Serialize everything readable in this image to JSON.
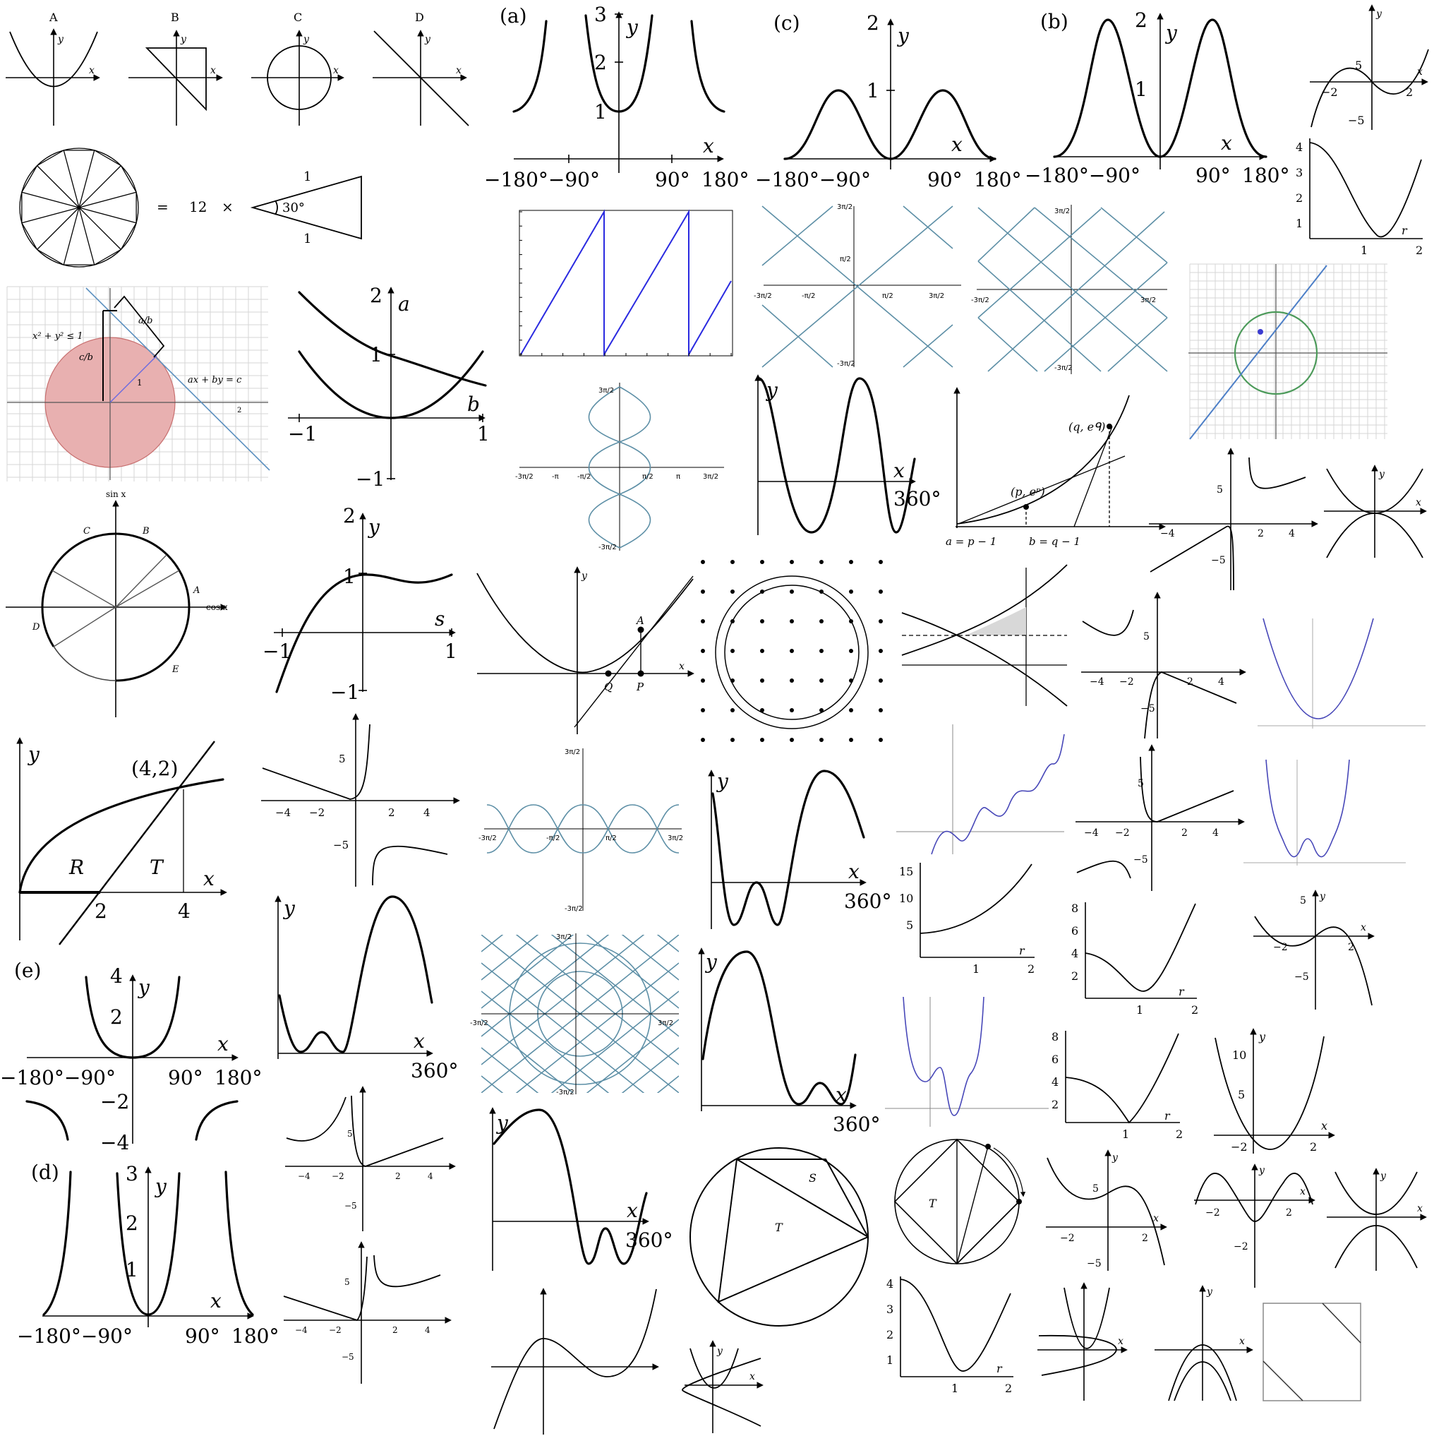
{
  "labels": {
    "A": "A",
    "B": "B",
    "C": "C",
    "D": "D",
    "a_paren": "(a)",
    "b_paren": "(b)",
    "c_paren": "(c)",
    "d_paren": "(d)",
    "e_paren": "(e)",
    "x": "x",
    "y": "y",
    "a": "a",
    "b": "b",
    "s": "s",
    "r": "r",
    "sinx": "sin x",
    "cosx": "cos x",
    "deg_m180_m90": "−180°−90°",
    "deg_90": "90°",
    "deg_180": "180°",
    "deg_360": "360°",
    "n1": "1",
    "n2": "2",
    "n3": "3",
    "n4": "4",
    "n5": "5",
    "n6": "6",
    "n8": "8",
    "n10": "10",
    "n15": "15",
    "n12": "12",
    "m1": "−1",
    "m2": "−2",
    "m4": "−4",
    "m5": "−5",
    "eq": "=",
    "times": "×",
    "deg30": "30°",
    "ineq": "x² + y² ≤ 1",
    "ab": "a/b",
    "cb": "c/b",
    "line_eq": "ax + by = c",
    "pt42": "(4,2)",
    "R": "R",
    "T": "T",
    "S": "S",
    "Pp": "P",
    "Qq": "Q",
    "Aa": "A",
    "pep": "(p, eᵖ)",
    "qeq": "(q, eᑫ)",
    "a_eq": "a = p − 1",
    "b_eq": "b = q − 1",
    "arcA": "A",
    "arcB": "B",
    "arcC": "C",
    "arcD": "D",
    "arcE": "E",
    "pi2": "π/2",
    "pi": "π",
    "tpi2": "3π/2",
    "mpi2": "-π/2",
    "mpi": "-π",
    "mtpi2": "-3π/2"
  },
  "icons": {
    "arrowhead": "arrowhead-icon",
    "dot": "dot-icon"
  },
  "colors": {
    "teal": "#5d8fa6",
    "blue": "#2a2ae0",
    "red_fill": "#e8b0b0",
    "green": "#4c9a5a",
    "purple": "#4747b8"
  }
}
